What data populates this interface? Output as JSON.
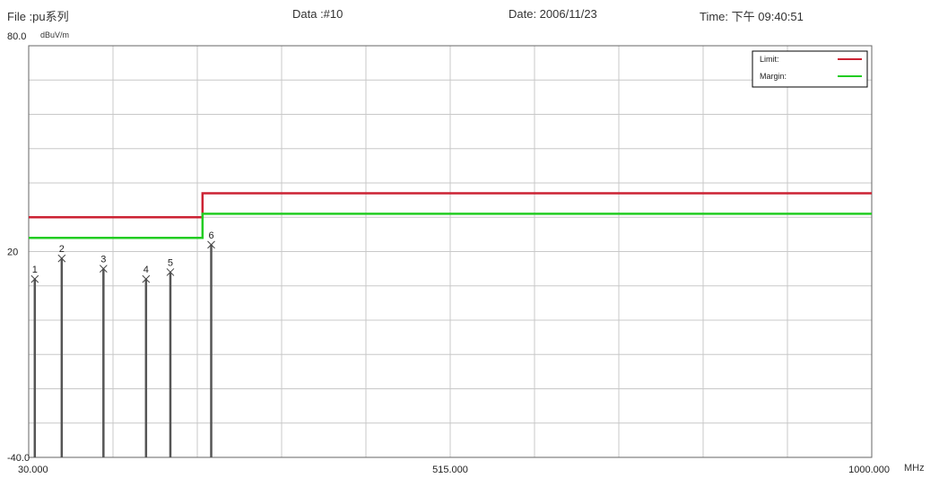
{
  "header": {
    "file": "File :pu系列",
    "data": "Data :#10",
    "date": "Date: 2006/11/23",
    "time": "Time: 下午 09:40:51"
  },
  "chart_data": {
    "type": "line",
    "unit_y": "dBuV/m",
    "unit_x": "MHz",
    "xlim": [
      30,
      1000
    ],
    "ylim": [
      -40,
      80
    ],
    "x_tick_labels": [
      {
        "value": 30,
        "text": "30.000"
      },
      {
        "value": 515,
        "text": "515.000"
      },
      {
        "value": 1000,
        "text": "1000.000"
      }
    ],
    "y_tick_labels": [
      {
        "value": 80,
        "text": "80.0"
      },
      {
        "value": 20,
        "text": "20"
      },
      {
        "value": -40,
        "text": "-40.0"
      }
    ],
    "grid": true,
    "grid_x_divisions": 10,
    "grid_y_divisions": 12,
    "legend_position": "top-right",
    "series": [
      {
        "name": "Limit",
        "color": "#cc2233",
        "x": [
          30,
          230,
          230,
          1000
        ],
        "y": [
          30,
          30,
          37,
          37
        ]
      },
      {
        "name": "Margin",
        "color": "#22cc22",
        "x": [
          30,
          230,
          230,
          1000
        ],
        "y": [
          24,
          24,
          31,
          31
        ]
      }
    ],
    "markers": [
      {
        "label": "1",
        "x": 37,
        "y": 12
      },
      {
        "label": "2",
        "x": 68,
        "y": 18
      },
      {
        "label": "3",
        "x": 116,
        "y": 15
      },
      {
        "label": "4",
        "x": 165,
        "y": 12
      },
      {
        "label": "5",
        "x": 193,
        "y": 14
      },
      {
        "label": "6",
        "x": 240,
        "y": 22
      }
    ]
  }
}
